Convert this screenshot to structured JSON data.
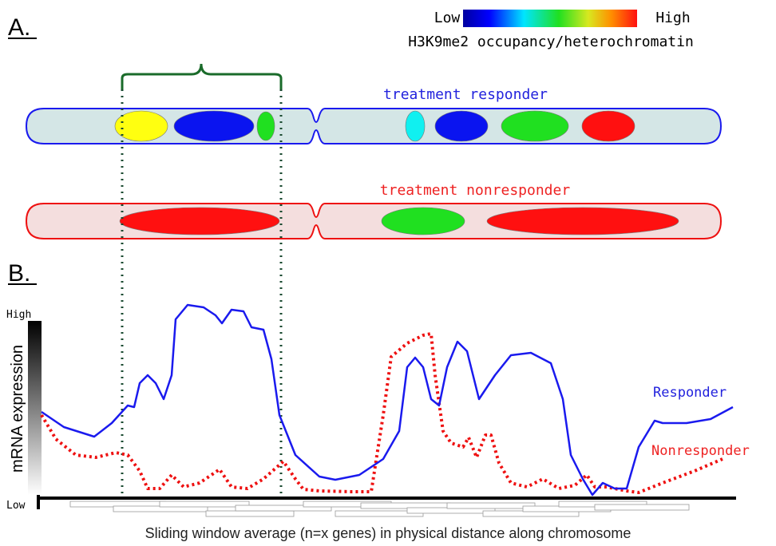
{
  "panel_a": {
    "label": "A.",
    "legend": {
      "low": "Low",
      "high": "High",
      "caption": "H3K9me2 occupancy/heterochromatin"
    },
    "responder_label": "treatment responder",
    "nonresponder_label": "treatment nonresponder"
  },
  "panel_b": {
    "label": "B.",
    "y_high": "High",
    "y_low": "Low",
    "y_axis_title": "mRNA expression",
    "responder_label": "Responder",
    "nonresponder_label": "Nonresponder",
    "x_axis_title": "Sliding window average (n=x genes) in physical distance along chromosome"
  }
}
